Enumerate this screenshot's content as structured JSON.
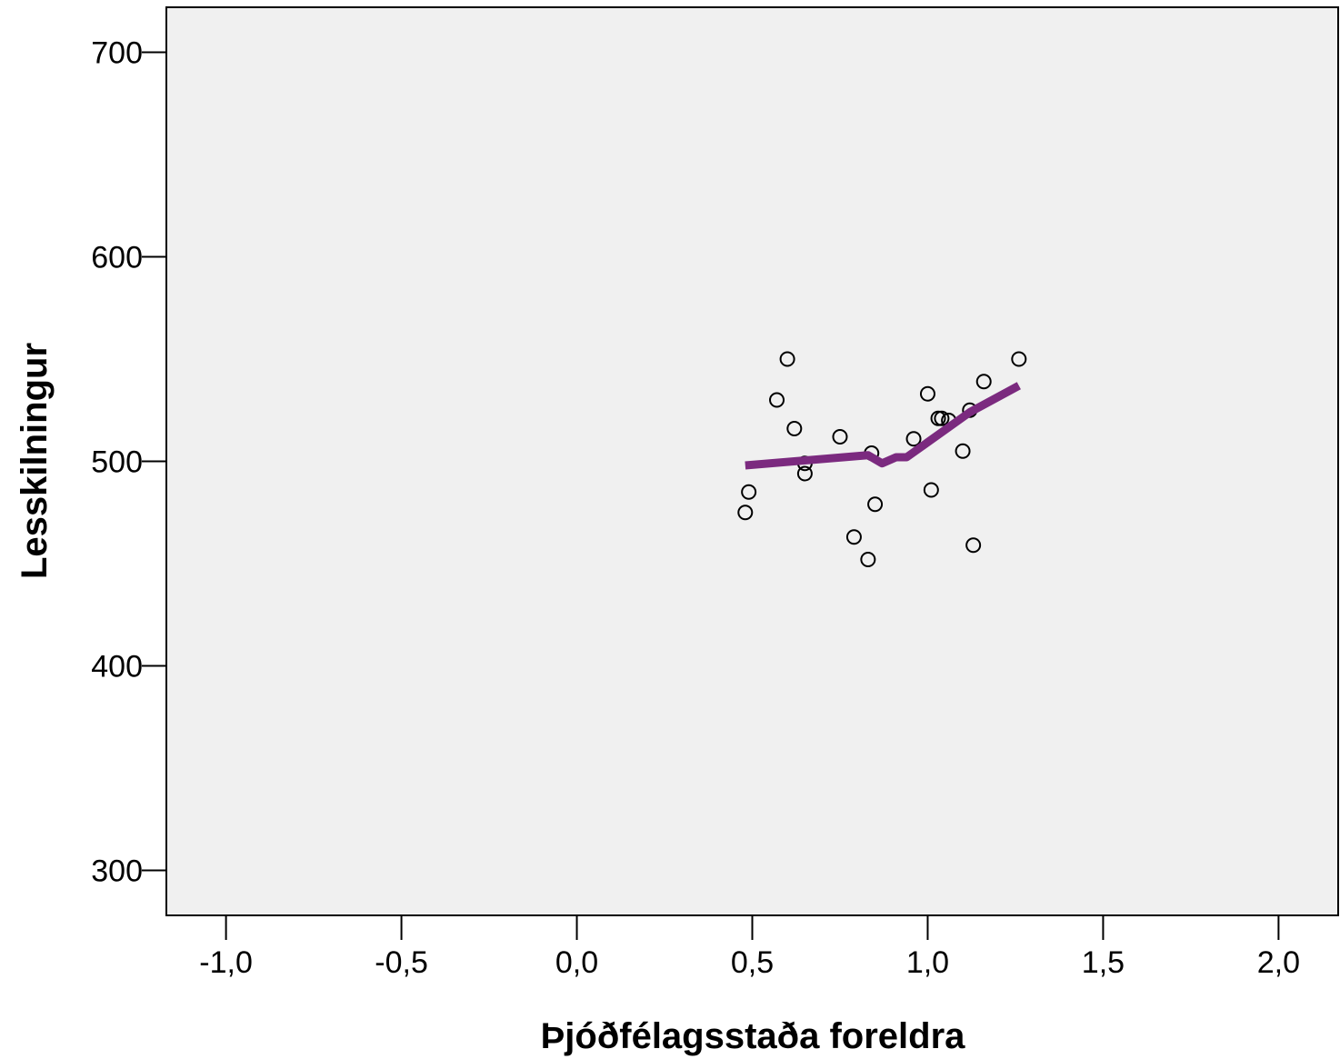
{
  "chart_data": {
    "type": "scatter",
    "xlabel": "Þjóðfélagsstaða foreldra",
    "ylabel": "Lesskilningur",
    "xlim": [
      -1.17,
      2.17
    ],
    "ylim": [
      278,
      722
    ],
    "xticks": [
      -1.0,
      -0.5,
      0.0,
      0.5,
      1.0,
      1.5,
      2.0
    ],
    "xtick_labels": [
      "-1,0",
      "-0,5",
      "0,0",
      "0,5",
      "1,0",
      "1,5",
      "2,0"
    ],
    "yticks": [
      300,
      400,
      500,
      600,
      700
    ],
    "ytick_labels": [
      "300",
      "400",
      "500",
      "600",
      "700"
    ],
    "grid": false,
    "legend": "none",
    "colors": {
      "plot_background": "#f0f0f0",
      "fit_line": "#7b2a7f",
      "points": "#000000"
    },
    "series": [
      {
        "type": "scatter",
        "points": [
          {
            "x": 0.48,
            "y": 475
          },
          {
            "x": 0.49,
            "y": 485
          },
          {
            "x": 0.57,
            "y": 530
          },
          {
            "x": 0.6,
            "y": 550
          },
          {
            "x": 0.62,
            "y": 516
          },
          {
            "x": 0.65,
            "y": 499
          },
          {
            "x": 0.65,
            "y": 494
          },
          {
            "x": 0.75,
            "y": 512
          },
          {
            "x": 0.79,
            "y": 463
          },
          {
            "x": 0.83,
            "y": 452
          },
          {
            "x": 0.84,
            "y": 504
          },
          {
            "x": 0.85,
            "y": 479
          },
          {
            "x": 0.96,
            "y": 511
          },
          {
            "x": 1.0,
            "y": 533
          },
          {
            "x": 1.01,
            "y": 486
          },
          {
            "x": 1.03,
            "y": 521
          },
          {
            "x": 1.04,
            "y": 521
          },
          {
            "x": 1.06,
            "y": 520
          },
          {
            "x": 1.1,
            "y": 505
          },
          {
            "x": 1.12,
            "y": 525
          },
          {
            "x": 1.13,
            "y": 459
          },
          {
            "x": 1.16,
            "y": 539
          },
          {
            "x": 1.26,
            "y": 550
          }
        ]
      },
      {
        "type": "line",
        "points": [
          {
            "x": 0.48,
            "y": 498
          },
          {
            "x": 0.83,
            "y": 503
          },
          {
            "x": 0.87,
            "y": 499
          },
          {
            "x": 0.91,
            "y": 502
          },
          {
            "x": 0.94,
            "y": 502
          },
          {
            "x": 1.12,
            "y": 524
          },
          {
            "x": 1.26,
            "y": 537
          }
        ]
      }
    ]
  }
}
